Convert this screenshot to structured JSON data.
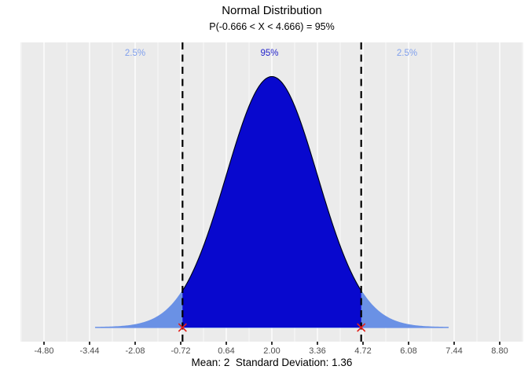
{
  "figure": {
    "title": "Normal Distribution",
    "subtitle": "P(-0.666 < X < 4.666) = 95%",
    "x_axis_title": "Mean: 2  Standard Deviation: 1.36"
  },
  "annotations": {
    "left_tail_label": "2.5%",
    "center_label": "95%",
    "right_tail_label": "2.5%"
  },
  "chart_data": {
    "type": "area",
    "distribution": "normal",
    "title": "Normal Distribution",
    "subtitle": "P(-0.666 < X < 4.666) = 95%",
    "xlabel": "Mean: 2  Standard Deviation: 1.36",
    "mean": 2,
    "sd": 1.36,
    "lower_bound": -0.666,
    "upper_bound": 4.666,
    "center_probability": 0.95,
    "tail_probability": 0.025,
    "peak_density": 0.2934,
    "curve_range_sd": 3.87,
    "x_ticks": [
      -4.8,
      -3.44,
      -2.08,
      -0.72,
      0.64,
      2.0,
      3.36,
      4.72,
      6.08,
      7.44,
      8.8
    ],
    "x_tick_labels": [
      "-4.80",
      "-3.44",
      "-2.08",
      "-0.72",
      "0.64",
      "2.00",
      "3.36",
      "4.72",
      "6.08",
      "7.44",
      "8.80"
    ],
    "xlim": [
      -5.5,
      9.5
    ],
    "grid": "vertical-only",
    "legend": "none",
    "colors": {
      "panel_bg": "#EBEBEB",
      "gridline": "#FFFFFF",
      "center_fill": "#0808CE",
      "center_outline": "#000000",
      "tail_fill": "#6A91E5",
      "tail_label_text": "#80A0EC",
      "center_label_text": "#2525CB",
      "dashed_line": "#000000",
      "marker_x": "#E3201B",
      "tick_text": "#4D4D4D",
      "title_text": "#000000"
    }
  }
}
